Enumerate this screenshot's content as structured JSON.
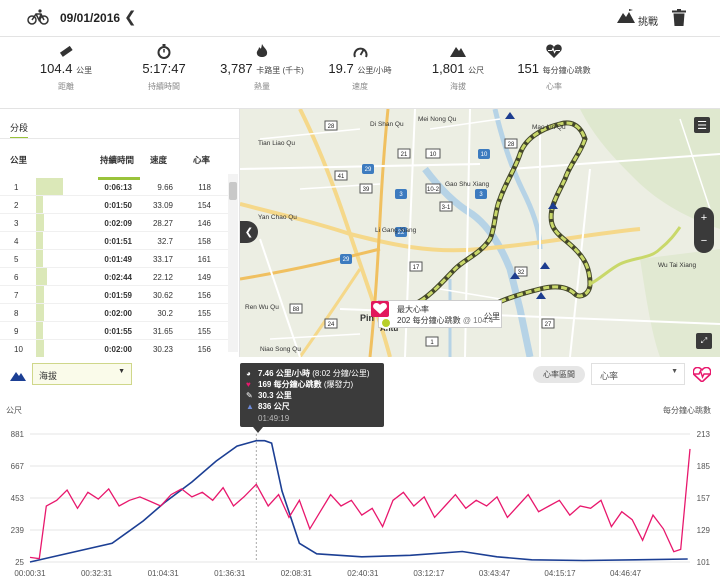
{
  "header": {
    "date": "09/01/2016",
    "back_icon": "chevron-left-icon",
    "challenge_label": "挑戰"
  },
  "stats": [
    {
      "icon": "ruler-icon",
      "value": "104.4",
      "unit": "公里",
      "label": "距離"
    },
    {
      "icon": "stopwatch-icon",
      "value": "5:17:47",
      "unit": "",
      "label": "持續時間"
    },
    {
      "icon": "flame-icon",
      "value": "3,787",
      "unit": "卡路里 (千卡)",
      "label": "熱量"
    },
    {
      "icon": "speedometer-icon",
      "value": "19.7",
      "unit": "公里/小時",
      "label": "速度"
    },
    {
      "icon": "mountain-icon",
      "value": "1,801",
      "unit": "公尺",
      "label": "海拔"
    },
    {
      "icon": "heart-rate-icon",
      "value": "151",
      "unit": "每分鐘心跳數",
      "label": "心率"
    }
  ],
  "splits": {
    "tab": "分段",
    "columns": [
      "公里",
      "持續時間",
      "速度",
      "心率"
    ],
    "rows": [
      {
        "n": "1",
        "time": "0:06:13",
        "speed": "9.66",
        "hr": "118",
        "fill": 0.45
      },
      {
        "n": "2",
        "time": "0:01:50",
        "speed": "33.09",
        "hr": "154",
        "fill": 0.12
      },
      {
        "n": "3",
        "time": "0:02:09",
        "speed": "28.27",
        "hr": "146",
        "fill": 0.14
      },
      {
        "n": "4",
        "time": "0:01:51",
        "speed": "32.7",
        "hr": "158",
        "fill": 0.12
      },
      {
        "n": "5",
        "time": "0:01:49",
        "speed": "33.17",
        "hr": "161",
        "fill": 0.12
      },
      {
        "n": "6",
        "time": "0:02:44",
        "speed": "22.12",
        "hr": "149",
        "fill": 0.18
      },
      {
        "n": "7",
        "time": "0:01:59",
        "speed": "30.62",
        "hr": "156",
        "fill": 0.13
      },
      {
        "n": "8",
        "time": "0:02:00",
        "speed": "30.2",
        "hr": "155",
        "fill": 0.13
      },
      {
        "n": "9",
        "time": "0:01:55",
        "speed": "31.65",
        "hr": "155",
        "fill": 0.12
      },
      {
        "n": "10",
        "time": "0:02:00",
        "speed": "30.23",
        "hr": "156",
        "fill": 0.13
      }
    ]
  },
  "map": {
    "labels": [
      "Di Shan Qu",
      "Mei Nong Qu",
      "Mao Lin Qu",
      "Tian Liao Qu",
      "Qi Shan Qu",
      "Gao Shu Xiang",
      "Yan Chao Qu",
      "Li Gang Xiang",
      "Ren Wu Qu",
      "Wu Tai Xiang",
      "Niao Song Qu",
      "Pin",
      "Antu",
      "Qishan Road",
      "Guanghua Road",
      "Jiuru Road",
      "Zhongshan Road"
    ],
    "road_numbers": [
      "28",
      "29",
      "39",
      "41",
      "43",
      "10",
      "22",
      "27",
      "3",
      "13",
      "17",
      "21",
      "22",
      "24",
      "181",
      "183",
      "184",
      "186",
      "3-1",
      "10-2",
      "1",
      "88",
      "10",
      "31",
      "32",
      "33"
    ],
    "popup_title": "最大心率",
    "popup_value": "202",
    "popup_unit": "每分鐘心跳數",
    "popup_at": "@ 104.4",
    "popup_tail": "公里"
  },
  "chart_controls": {
    "left_select": "海拔",
    "zones_button": "心率區間",
    "right_select": "心率",
    "left_axis_label": "公尺",
    "right_axis_label": "每分鐘心跳數"
  },
  "tooltip": {
    "speed": "7.46 公里/小時",
    "pace": "(8:02 分鐘/公里)",
    "hr": "169 每分鐘心跳數",
    "hr_note": "(爆發力)",
    "dist": "30.3 公里",
    "elev": "836 公尺",
    "time": "01:49:19"
  },
  "chart_data": {
    "type": "line",
    "x_ticks": [
      "00:00:31",
      "00:32:31",
      "01:04:31",
      "01:36:31",
      "02:08:31",
      "02:40:31",
      "03:12:17",
      "03:43:47",
      "04:15:17",
      "04:46:47"
    ],
    "x_tick_seconds": [
      31,
      1951,
      3871,
      5791,
      7711,
      9631,
      11537,
      13427,
      15317,
      17207
    ],
    "x_range_seconds": [
      31,
      19067
    ],
    "y_left": {
      "label": "公尺",
      "ticks": [
        25,
        239,
        453,
        667,
        881
      ],
      "range": [
        25,
        881
      ]
    },
    "y_right": {
      "label": "每分鐘心跳數",
      "ticks": [
        101,
        129,
        157,
        185,
        213
      ],
      "range": [
        101,
        213
      ]
    },
    "cursor_seconds": 6559,
    "series": [
      {
        "name": "海拔",
        "axis": "left",
        "color": "#1c3f94",
        "x": [
          31,
          2400,
          3300,
          3900,
          4700,
          5400,
          6000,
          6559,
          6800,
          7000,
          7300,
          7800,
          8300,
          9600,
          11000,
          12500,
          13500,
          14500,
          16000,
          17500,
          19000
        ],
        "y": [
          25,
          150,
          300,
          420,
          560,
          700,
          800,
          836,
          836,
          820,
          500,
          150,
          80,
          60,
          70,
          95,
          60,
          40,
          35,
          40,
          45
        ]
      },
      {
        "name": "心率",
        "axis": "right",
        "color": "#e8186d",
        "x": [
          31,
          300,
          500,
          800,
          1100,
          1400,
          1700,
          2000,
          2300,
          2600,
          2900,
          3200,
          3500,
          3800,
          4100,
          4400,
          4700,
          5000,
          5300,
          5600,
          5900,
          6200,
          6559,
          6900,
          7200,
          7500,
          7800,
          8100,
          8400,
          8700,
          9000,
          9300,
          9600,
          9900,
          10200,
          10500,
          10800,
          11100,
          11400,
          11700,
          12000,
          12300,
          12600,
          12900,
          13200,
          13500,
          13800,
          14100,
          14400,
          14700,
          15000,
          15300,
          15600,
          15900,
          16200,
          16500,
          16800,
          17100,
          17400,
          17700,
          18000,
          18300,
          18600,
          18800,
          19067
        ],
        "y": [
          105,
          104,
          150,
          155,
          164,
          148,
          162,
          156,
          165,
          150,
          155,
          158,
          154,
          150,
          160,
          165,
          158,
          162,
          155,
          166,
          150,
          158,
          169,
          150,
          160,
          140,
          155,
          130,
          145,
          160,
          150,
          155,
          142,
          148,
          132,
          155,
          162,
          150,
          158,
          140,
          150,
          160,
          148,
          155,
          150,
          158,
          140,
          150,
          160,
          145,
          150,
          155,
          142,
          150,
          148,
          155,
          132,
          145,
          138,
          120,
          142,
          130,
          110,
          112,
          200
        ]
      }
    ]
  }
}
